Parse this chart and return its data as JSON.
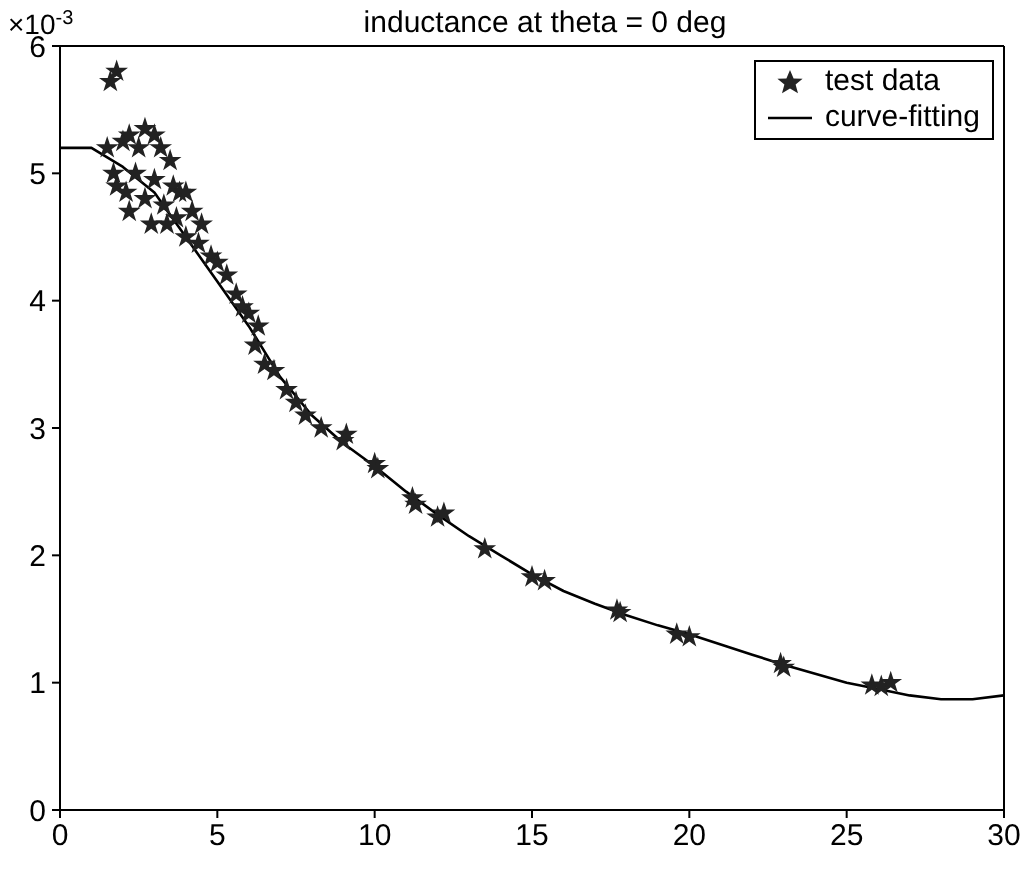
{
  "chart_data": {
    "type": "scatter",
    "title": "inductance at theta = 0 deg",
    "annotations": [
      "×10$^{-3}$"
    ],
    "xlim": [
      0,
      30
    ],
    "xticks": [
      0,
      5,
      10,
      15,
      20,
      25,
      30
    ],
    "ylim": [
      0,
      6
    ],
    "yticks": [
      0,
      1,
      2,
      3,
      4,
      5,
      6
    ],
    "legend": "top right",
    "series": [
      {
        "name": "test data",
        "marker": "star",
        "color": "#222222",
        "x": [
          1.6,
          1.8,
          1.5,
          1.7,
          2.0,
          2.2,
          2.5,
          2.7,
          3.0,
          3.2,
          3.5,
          1.8,
          2.1,
          2.4,
          2.2,
          2.7,
          2.9,
          3.3,
          3.0,
          3.6,
          3.8,
          4.0,
          3.7,
          4.2,
          4.5,
          3.4,
          4.0,
          4.4,
          4.8,
          5.0,
          5.3,
          5.6,
          5.8,
          6.0,
          6.3,
          6.2,
          6.5,
          6.8,
          7.2,
          7.5,
          7.8,
          8.3,
          9.0,
          9.1,
          10.0,
          10.1,
          11.2,
          11.3,
          12.0,
          12.2,
          13.5,
          15.0,
          15.4,
          17.7,
          17.8,
          19.6,
          20.0,
          22.9,
          23.0,
          25.8,
          26.1,
          26.4
        ],
        "values": [
          5.72,
          5.8,
          5.2,
          5.0,
          5.25,
          5.3,
          5.2,
          5.35,
          5.3,
          5.2,
          5.1,
          4.9,
          4.85,
          5.0,
          4.7,
          4.8,
          4.6,
          4.75,
          4.95,
          4.9,
          4.85,
          4.85,
          4.65,
          4.7,
          4.6,
          4.6,
          4.5,
          4.45,
          4.35,
          4.3,
          4.2,
          4.05,
          3.95,
          3.9,
          3.8,
          3.65,
          3.5,
          3.45,
          3.3,
          3.2,
          3.1,
          3.0,
          2.9,
          2.95,
          2.72,
          2.68,
          2.45,
          2.4,
          2.3,
          2.33,
          2.05,
          1.83,
          1.8,
          1.57,
          1.55,
          1.38,
          1.36,
          1.15,
          1.12,
          0.98,
          0.97,
          1.0
        ]
      },
      {
        "name": "curve-fitting",
        "type": "line",
        "line_style": "solid",
        "color": "#000000",
        "x": [
          0,
          1,
          2,
          3,
          4,
          5,
          6,
          7,
          8,
          9,
          10,
          11,
          12,
          13,
          14,
          15,
          16,
          17,
          18,
          19,
          20,
          21,
          22,
          23,
          24,
          25,
          26,
          27,
          28,
          29,
          30
        ],
        "values": [
          5.2,
          5.2,
          5.05,
          4.85,
          4.5,
          4.15,
          3.8,
          3.4,
          3.1,
          2.88,
          2.7,
          2.5,
          2.32,
          2.15,
          2.0,
          1.85,
          1.72,
          1.62,
          1.53,
          1.45,
          1.38,
          1.3,
          1.22,
          1.14,
          1.07,
          1.0,
          0.95,
          0.9,
          0.87,
          0.87,
          0.9
        ]
      }
    ]
  }
}
